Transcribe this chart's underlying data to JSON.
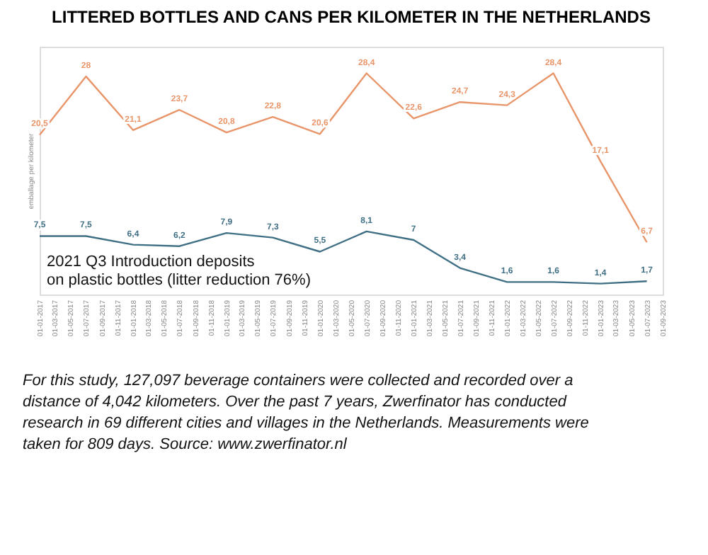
{
  "chart_data": {
    "type": "line",
    "title": "LITTERED BOTTLES AND CANS PER KILOMETER IN THE NETHERLANDS",
    "ylabel": "emballage per kilometer",
    "x": [
      "2017-01",
      "2017-07",
      "2018-01",
      "2018-07",
      "2019-01",
      "2019-07",
      "2020-01",
      "2020-07",
      "2021-01",
      "2021-07",
      "2022-01",
      "2022-07",
      "2023-01",
      "2023-07"
    ],
    "series": [
      {
        "color": "#e8956a",
        "values": [
          20.5,
          28,
          21.1,
          23.7,
          20.8,
          22.8,
          20.6,
          28.4,
          22.6,
          24.7,
          24.3,
          28.4,
          17.1,
          6.7
        ],
        "value_labels": [
          "20,5",
          "28",
          "21,1",
          "23,7",
          "20,8",
          "22,8",
          "20,6",
          "28,4",
          "22,6",
          "24,7",
          "24,3",
          "28,4",
          "17,1",
          "6,7"
        ]
      },
      {
        "color": "#3f6f85",
        "values": [
          7.5,
          7.5,
          6.4,
          6.2,
          7.9,
          7.3,
          5.5,
          8.1,
          7,
          3.4,
          1.6,
          1.6,
          1.4,
          1.7
        ],
        "value_labels": [
          "7,5",
          "7,5",
          "6,4",
          "6,2",
          "7,9",
          "7,3",
          "5,5",
          "8,1",
          "7",
          "3,4",
          "1,6",
          "1,6",
          "1,4",
          "1,7"
        ]
      }
    ],
    "grid": false,
    "legend": false,
    "marker": "none",
    "line_style": "solid",
    "tick_labels": "x",
    "xlim": [
      "2017-01",
      "2023-09"
    ],
    "xticks": [
      {
        "value": "2017-01",
        "label": "01-01-2017"
      },
      {
        "value": "2017-03",
        "label": "01-03-2017"
      },
      {
        "value": "2017-05",
        "label": "01-05-2017"
      },
      {
        "value": "2017-07",
        "label": "01-07-2017"
      },
      {
        "value": "2017-09",
        "label": "01-09-2017"
      },
      {
        "value": "2017-11",
        "label": "01-11-2017"
      },
      {
        "value": "2018-01",
        "label": "01-01-2018"
      },
      {
        "value": "2018-03",
        "label": "01-03-2018"
      },
      {
        "value": "2018-05",
        "label": "01-05-2018"
      },
      {
        "value": "2018-07",
        "label": "01-07-2018"
      },
      {
        "value": "2018-09",
        "label": "01-09-2018"
      },
      {
        "value": "2018-11",
        "label": "01-11-2018"
      },
      {
        "value": "2019-01",
        "label": "01-01-2019"
      },
      {
        "value": "2019-03",
        "label": "01-03-2019"
      },
      {
        "value": "2019-05",
        "label": "01-05-2019"
      },
      {
        "value": "2019-07",
        "label": "01-07-2019"
      },
      {
        "value": "2019-09",
        "label": "01-09-2019"
      },
      {
        "value": "2019-11",
        "label": "01-11-2019"
      },
      {
        "value": "2020-01",
        "label": "01-01-2020"
      },
      {
        "value": "2020-03",
        "label": "01-03-2020"
      },
      {
        "value": "2020-05",
        "label": "01-05-2020"
      },
      {
        "value": "2020-07",
        "label": "01-07-2020"
      },
      {
        "value": "2020-09",
        "label": "01-09-2020"
      },
      {
        "value": "2020-11",
        "label": "01-11-2020"
      },
      {
        "value": "2021-01",
        "label": "01-01-2021"
      },
      {
        "value": "2021-03",
        "label": "01-03-2021"
      },
      {
        "value": "2021-05",
        "label": "01-05-2021"
      },
      {
        "value": "2021-07",
        "label": "01-07-2021"
      },
      {
        "value": "2021-09",
        "label": "01-09-2021"
      },
      {
        "value": "2021-11",
        "label": "01-11-2021"
      },
      {
        "value": "2022-01",
        "label": "01-01-2022"
      },
      {
        "value": "2022-03",
        "label": "01-03-2022"
      },
      {
        "value": "2022-05",
        "label": "01-05-2022"
      },
      {
        "value": "2022-07",
        "label": "01-07-2022"
      },
      {
        "value": "2022-09",
        "label": "01-09-2022"
      },
      {
        "value": "2022-11",
        "label": "01-11-2022"
      },
      {
        "value": "2023-01",
        "label": "01-01-2023"
      },
      {
        "value": "2023-03",
        "label": "01-03-2023"
      },
      {
        "value": "2023-05",
        "label": "01-05-2023"
      },
      {
        "value": "2023-07",
        "label": "01-07-2023"
      },
      {
        "value": "2023-09",
        "label": "01-09-2023"
      }
    ],
    "annotations": [
      "2021 Q3 Introduction deposits\non plastic bottles (litter reduction 76%)",
      "For this study, 127,097 beverage containers were collected and recorded over a distance of 4,042 kilometers. Over the past 7 years, Zwerfinator has conducted research in 69 different cities and villages in the Netherlands. Measurements were taken for 809 days. Source: www.zwerfinator.nl"
    ]
  }
}
